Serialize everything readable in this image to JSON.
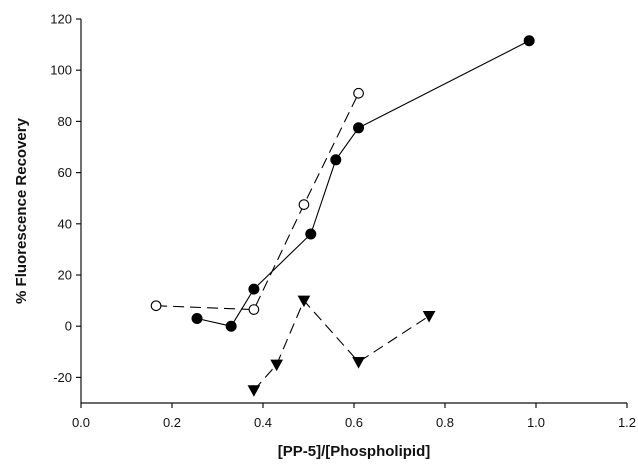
{
  "chart_data": {
    "type": "scatter",
    "title": "",
    "xlabel": "[PP-5]/[Phospholipid]",
    "ylabel": "% Fluorescence Recovery",
    "xlim": [
      0.0,
      1.2
    ],
    "ylim": [
      -30,
      120
    ],
    "x_ticks": [
      "0.0",
      "0.2",
      "0.4",
      "0.6",
      "0.8",
      "1.0",
      "1.2"
    ],
    "y_ticks": [
      "-20",
      "0",
      "20",
      "40",
      "60",
      "80",
      "100",
      "120"
    ],
    "grid": false,
    "legend": "none",
    "series": [
      {
        "marker": "filled-circle",
        "line": "solid",
        "color": "#000000",
        "x": [
          0.255,
          0.33,
          0.38,
          0.505,
          0.56,
          0.61,
          0.985
        ],
        "y": [
          3,
          0,
          14.5,
          36,
          65,
          77.5,
          111.5
        ]
      },
      {
        "marker": "open-circle",
        "line": "long-dash",
        "color": "#000000",
        "x": [
          0.165,
          0.38,
          0.49,
          0.61
        ],
        "y": [
          8,
          6.5,
          47.5,
          91
        ]
      },
      {
        "marker": "filled-triangle-down",
        "line": "long-dash",
        "color": "#000000",
        "x": [
          0.38,
          0.43,
          0.49,
          0.61,
          0.765
        ],
        "y": [
          -25,
          -15,
          10,
          -14,
          4
        ]
      }
    ]
  }
}
